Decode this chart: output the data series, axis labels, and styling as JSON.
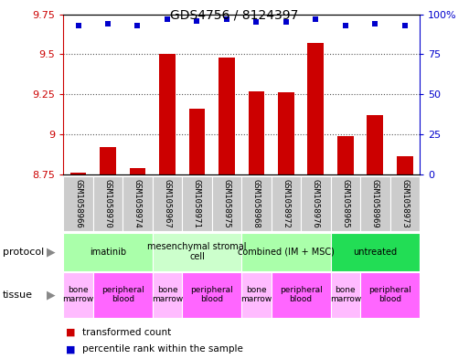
{
  "title": "GDS4756 / 8124397",
  "samples": [
    "GSM1058966",
    "GSM1058970",
    "GSM1058974",
    "GSM1058967",
    "GSM1058971",
    "GSM1058975",
    "GSM1058968",
    "GSM1058972",
    "GSM1058976",
    "GSM1058965",
    "GSM1058969",
    "GSM1058973"
  ],
  "bar_values": [
    8.76,
    8.92,
    8.79,
    9.5,
    9.16,
    9.48,
    9.27,
    9.26,
    9.57,
    8.99,
    9.12,
    8.86
  ],
  "dot_values": [
    93,
    94,
    93,
    97,
    96,
    97,
    95,
    95,
    97,
    93,
    94,
    93
  ],
  "ylim_left": [
    8.75,
    9.75
  ],
  "ylim_right": [
    0,
    100
  ],
  "yticks_left": [
    8.75,
    9.0,
    9.25,
    9.5,
    9.75
  ],
  "yticks_left_labels": [
    "8.75",
    "9",
    "9.25",
    "9.5",
    "9.75"
  ],
  "yticks_right": [
    0,
    25,
    50,
    75,
    100
  ],
  "yticks_right_labels": [
    "0",
    "25",
    "50",
    "75",
    "100%"
  ],
  "bar_color": "#cc0000",
  "dot_color": "#0000cc",
  "protocol_groups": [
    {
      "label": "imatinib",
      "start": 0,
      "end": 3,
      "color": "#aaffaa"
    },
    {
      "label": "mesenchymal stromal\ncell",
      "start": 3,
      "end": 6,
      "color": "#ccffcc"
    },
    {
      "label": "combined (IM + MSC)",
      "start": 6,
      "end": 9,
      "color": "#aaffaa"
    },
    {
      "label": "untreated",
      "start": 9,
      "end": 12,
      "color": "#22dd55"
    }
  ],
  "tissue_groups": [
    {
      "label": "bone\nmarrow",
      "start": 0,
      "end": 1,
      "color": "#ffbbff"
    },
    {
      "label": "peripheral\nblood",
      "start": 1,
      "end": 3,
      "color": "#ff66ff"
    },
    {
      "label": "bone\nmarrow",
      "start": 3,
      "end": 4,
      "color": "#ffbbff"
    },
    {
      "label": "peripheral\nblood",
      "start": 4,
      "end": 6,
      "color": "#ff66ff"
    },
    {
      "label": "bone\nmarrow",
      "start": 6,
      "end": 7,
      "color": "#ffbbff"
    },
    {
      "label": "peripheral\nblood",
      "start": 7,
      "end": 9,
      "color": "#ff66ff"
    },
    {
      "label": "bone\nmarrow",
      "start": 9,
      "end": 10,
      "color": "#ffbbff"
    },
    {
      "label": "peripheral\nblood",
      "start": 10,
      "end": 12,
      "color": "#ff66ff"
    }
  ],
  "legend_items": [
    {
      "label": "transformed count",
      "color": "#cc0000"
    },
    {
      "label": "percentile rank within the sample",
      "color": "#0000cc"
    }
  ],
  "grid_color": "#555555",
  "bg_color": "#ffffff",
  "sample_bg_color": "#cccccc",
  "grid_yticks": [
    9.0,
    9.25,
    9.5
  ],
  "bar_width": 0.55
}
